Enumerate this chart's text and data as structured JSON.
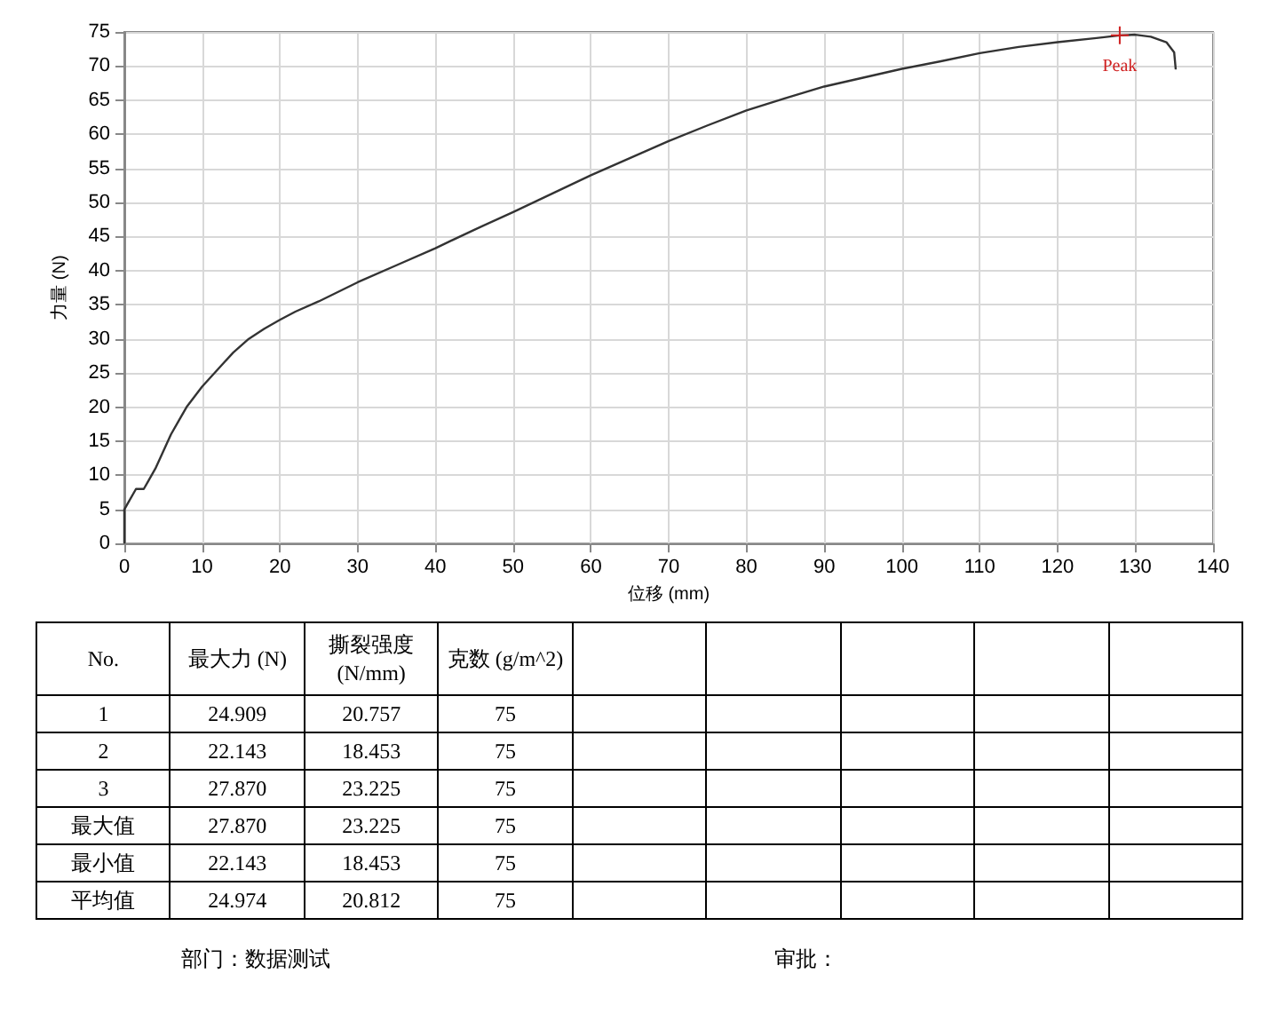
{
  "chart_data": [
    {
      "type": "line",
      "xlabel": "位移 (mm)",
      "ylabel": "力量 (N)",
      "xlim": [
        0,
        140
      ],
      "xticks": [
        0,
        10,
        20,
        30,
        40,
        50,
        60,
        70,
        80,
        90,
        100,
        110,
        120,
        130,
        140
      ],
      "ylim": [
        0,
        75
      ],
      "yticks": [
        0,
        5,
        10,
        15,
        20,
        25,
        30,
        35,
        40,
        45,
        50,
        55,
        60,
        65,
        70,
        75
      ],
      "grid": true,
      "marker": "none",
      "line_style": "solid",
      "series": [
        {
          "color": "#333333",
          "x": [
            0,
            0,
            0.5,
            1.5,
            2.5,
            3,
            4,
            5,
            6,
            7,
            8,
            9,
            10,
            12,
            14,
            16,
            18,
            20,
            22,
            25,
            30,
            35,
            40,
            45,
            50,
            55,
            60,
            65,
            70,
            75,
            80,
            85,
            90,
            95,
            100,
            105,
            110,
            115,
            120,
            125,
            128,
            130,
            132,
            134,
            135,
            135.2
          ],
          "values": [
            0,
            5,
            6,
            8,
            8,
            9,
            11,
            13.5,
            16,
            18,
            20,
            21.5,
            23,
            25.5,
            28,
            30,
            31.5,
            32.8,
            34,
            35.5,
            38.3,
            40.8,
            43.3,
            46,
            48.6,
            51.3,
            54,
            56.5,
            59,
            61.3,
            63.5,
            65.3,
            67,
            68.3,
            69.6,
            70.7,
            71.9,
            72.8,
            73.5,
            74.1,
            74.5,
            74.6,
            74.3,
            73.5,
            72,
            69.5
          ]
        }
      ],
      "annotations": [
        {
          "text": "Peak",
          "x": 128,
          "y": 74.5
        }
      ]
    },
    {
      "type": "other",
      "ylabel": "No.",
      "categories": [
        "最大力 (N)",
        "撕裂强度 (N/mm)",
        "克数 (g/m^2)",
        null,
        null,
        null,
        null,
        null
      ],
      "y_categories": [
        "1",
        "2",
        "3",
        "最大值",
        "最小值",
        "平均值"
      ],
      "cell_labels": [
        [
          "24.909",
          "20.757",
          "75",
          null,
          null,
          null,
          null,
          null
        ],
        [
          "22.143",
          "18.453",
          "75",
          null,
          null,
          null,
          null,
          null
        ],
        [
          "27.870",
          "23.225",
          "75",
          null,
          null,
          null,
          null,
          null
        ],
        [
          "27.870",
          "23.225",
          "75",
          null,
          null,
          null,
          null,
          null
        ],
        [
          "22.143",
          "18.453",
          "75",
          null,
          null,
          null,
          null,
          null
        ],
        [
          "24.974",
          "20.812",
          "75",
          null,
          null,
          null,
          null,
          null
        ]
      ],
      "annotations": [
        "部门：数据测试",
        "审批："
      ]
    }
  ]
}
